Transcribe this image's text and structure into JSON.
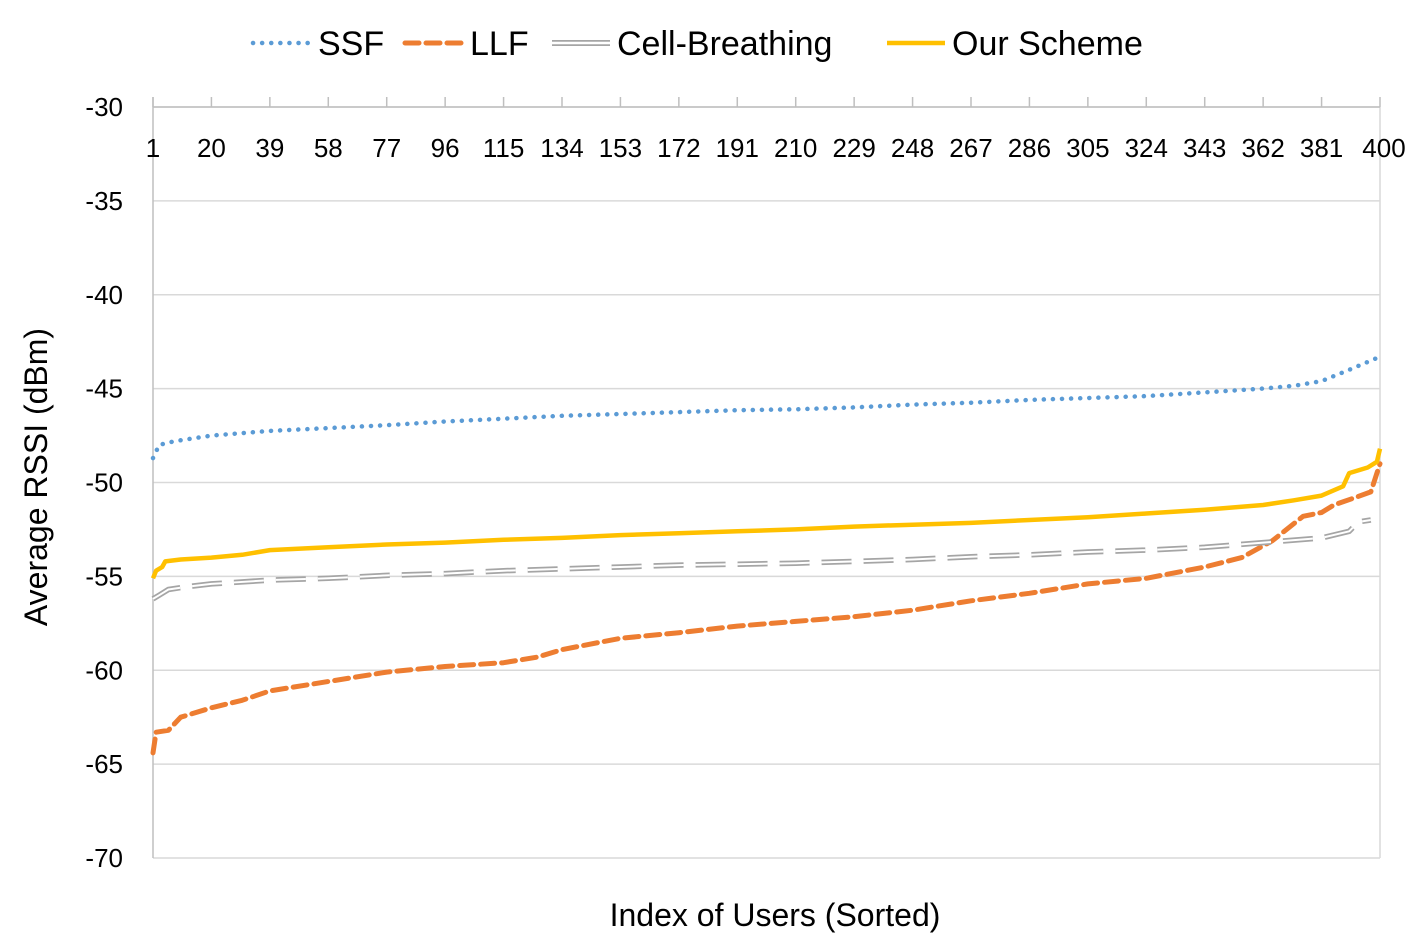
{
  "chart_data": {
    "type": "line",
    "title": "",
    "xlabel": "Index of Users (Sorted)",
    "ylabel": "Average RSSI (dBm)",
    "xlim": [
      1,
      400
    ],
    "ylim": [
      -70,
      -30
    ],
    "x_ticks": [
      "1",
      "20",
      "39",
      "58",
      "77",
      "96",
      "115",
      "134",
      "153",
      "172",
      "191",
      "210",
      "229",
      "248",
      "267",
      "286",
      "305",
      "324",
      "343",
      "362",
      "381",
      "400"
    ],
    "y_ticks": [
      "-30",
      "-35",
      "-40",
      "-45",
      "-50",
      "-55",
      "-60",
      "-65",
      "-70"
    ],
    "x_tick_position": "top",
    "grid": "horizontal",
    "legend_position": "top",
    "series": [
      {
        "name": "SSF",
        "color": "#5b9bd5",
        "style": "dotted",
        "points": [
          [
            1,
            -48.7
          ],
          [
            3,
            -48.0
          ],
          [
            8,
            -47.8
          ],
          [
            20,
            -47.5
          ],
          [
            39,
            -47.25
          ],
          [
            58,
            -47.1
          ],
          [
            77,
            -46.95
          ],
          [
            96,
            -46.75
          ],
          [
            115,
            -46.6
          ],
          [
            134,
            -46.45
          ],
          [
            153,
            -46.35
          ],
          [
            172,
            -46.25
          ],
          [
            191,
            -46.15
          ],
          [
            210,
            -46.1
          ],
          [
            229,
            -46.0
          ],
          [
            248,
            -45.85
          ],
          [
            267,
            -45.75
          ],
          [
            286,
            -45.6
          ],
          [
            305,
            -45.5
          ],
          [
            324,
            -45.4
          ],
          [
            343,
            -45.2
          ],
          [
            362,
            -45.0
          ],
          [
            372,
            -44.85
          ],
          [
            381,
            -44.6
          ],
          [
            390,
            -44.0
          ],
          [
            400,
            -43.3
          ]
        ]
      },
      {
        "name": "LLF",
        "color": "#ed7d31",
        "style": "dashed",
        "points": [
          [
            1,
            -64.4
          ],
          [
            2,
            -63.3
          ],
          [
            6,
            -63.2
          ],
          [
            10,
            -62.5
          ],
          [
            20,
            -62.0
          ],
          [
            30,
            -61.6
          ],
          [
            39,
            -61.1
          ],
          [
            58,
            -60.6
          ],
          [
            77,
            -60.1
          ],
          [
            96,
            -59.8
          ],
          [
            115,
            -59.6
          ],
          [
            126,
            -59.3
          ],
          [
            134,
            -58.9
          ],
          [
            153,
            -58.3
          ],
          [
            172,
            -58.0
          ],
          [
            191,
            -57.65
          ],
          [
            210,
            -57.4
          ],
          [
            229,
            -57.15
          ],
          [
            248,
            -56.8
          ],
          [
            267,
            -56.3
          ],
          [
            286,
            -55.9
          ],
          [
            305,
            -55.4
          ],
          [
            324,
            -55.1
          ],
          [
            343,
            -54.5
          ],
          [
            355,
            -54.0
          ],
          [
            365,
            -53.1
          ],
          [
            375,
            -51.8
          ],
          [
            381,
            -51.6
          ],
          [
            385,
            -51.2
          ],
          [
            392,
            -50.8
          ],
          [
            397,
            -50.5
          ],
          [
            400,
            -49.0
          ]
        ]
      },
      {
        "name": "Cell-Breathing",
        "color": "#a5a5a5",
        "style": "double",
        "points": [
          [
            1,
            -56.2
          ],
          [
            3,
            -56.0
          ],
          [
            6,
            -55.7
          ],
          [
            12,
            -55.55
          ],
          [
            20,
            -55.4
          ],
          [
            39,
            -55.2
          ],
          [
            58,
            -55.1
          ],
          [
            77,
            -54.95
          ],
          [
            96,
            -54.85
          ],
          [
            115,
            -54.7
          ],
          [
            134,
            -54.6
          ],
          [
            153,
            -54.5
          ],
          [
            172,
            -54.4
          ],
          [
            191,
            -54.35
          ],
          [
            210,
            -54.3
          ],
          [
            229,
            -54.2
          ],
          [
            248,
            -54.1
          ],
          [
            267,
            -53.95
          ],
          [
            286,
            -53.85
          ],
          [
            305,
            -53.7
          ],
          [
            324,
            -53.6
          ],
          [
            343,
            -53.45
          ],
          [
            362,
            -53.2
          ],
          [
            381,
            -52.95
          ],
          [
            390,
            -52.6
          ],
          [
            393,
            -52.1
          ],
          [
            397,
            -52.0
          ]
        ]
      },
      {
        "name": "Our Scheme",
        "color": "#ffc000",
        "style": "solid",
        "points": [
          [
            1,
            -55.1
          ],
          [
            2,
            -54.7
          ],
          [
            4,
            -54.5
          ],
          [
            5,
            -54.2
          ],
          [
            10,
            -54.1
          ],
          [
            20,
            -54.0
          ],
          [
            30,
            -53.85
          ],
          [
            39,
            -53.6
          ],
          [
            58,
            -53.45
          ],
          [
            77,
            -53.3
          ],
          [
            96,
            -53.2
          ],
          [
            115,
            -53.05
          ],
          [
            134,
            -52.95
          ],
          [
            153,
            -52.8
          ],
          [
            172,
            -52.7
          ],
          [
            191,
            -52.6
          ],
          [
            210,
            -52.5
          ],
          [
            229,
            -52.35
          ],
          [
            248,
            -52.25
          ],
          [
            267,
            -52.15
          ],
          [
            286,
            -52.0
          ],
          [
            305,
            -51.85
          ],
          [
            324,
            -51.65
          ],
          [
            343,
            -51.45
          ],
          [
            362,
            -51.2
          ],
          [
            372,
            -50.95
          ],
          [
            381,
            -50.7
          ],
          [
            388,
            -50.2
          ],
          [
            390,
            -49.5
          ],
          [
            396,
            -49.2
          ],
          [
            399,
            -48.9
          ],
          [
            400,
            -48.2
          ]
        ]
      }
    ]
  }
}
